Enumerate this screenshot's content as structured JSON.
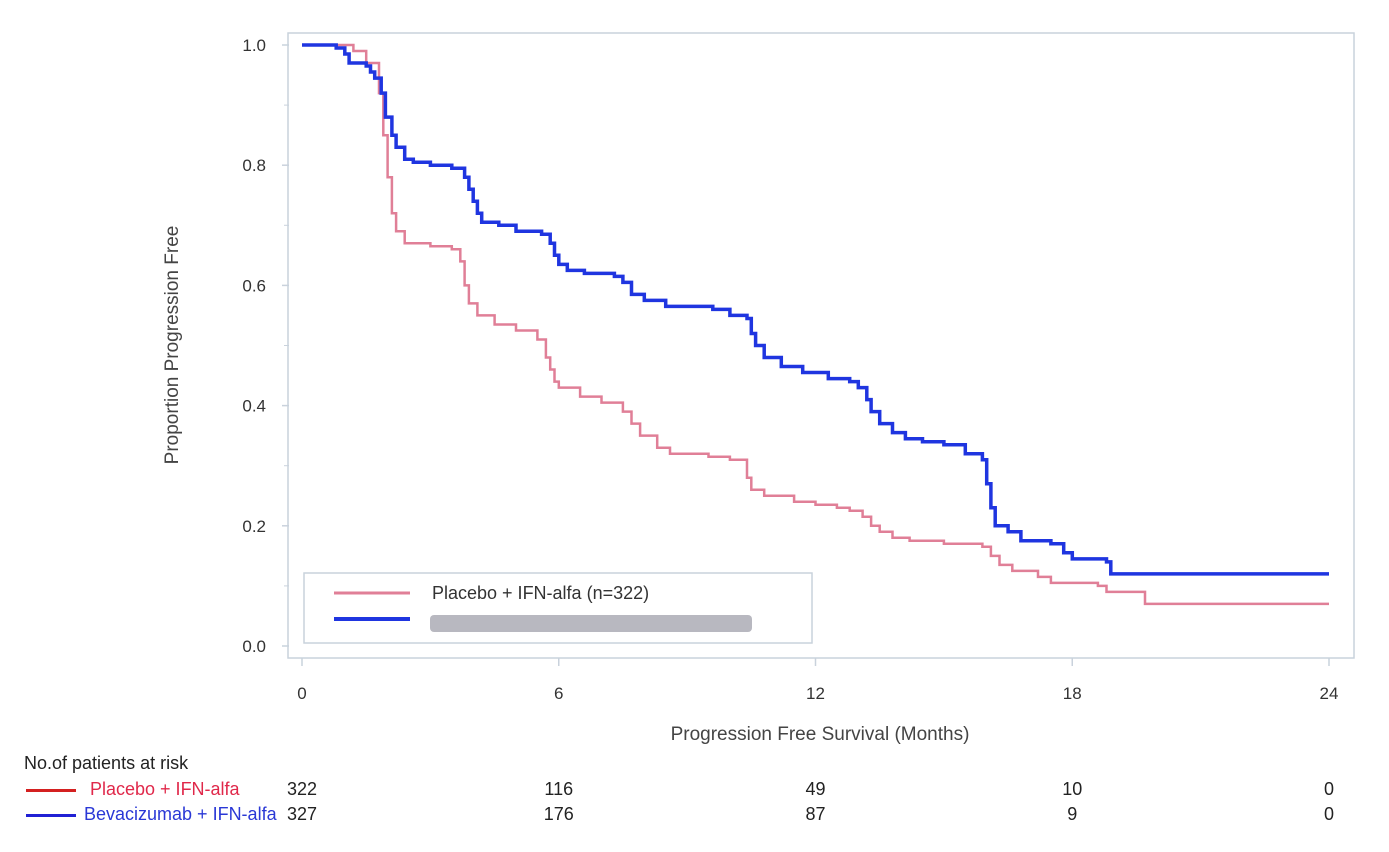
{
  "chart_data": {
    "type": "line",
    "xlabel": "Progression Free Survival (Months)",
    "ylabel": "Proportion Progression Free",
    "xlim": [
      0,
      24
    ],
    "ylim": [
      0,
      1
    ],
    "x_ticks": [
      "0",
      "6",
      "12",
      "18",
      "24"
    ],
    "y_ticks": [
      "0.0",
      "0.2",
      "0.4",
      "0.6",
      "0.8",
      "1.0"
    ],
    "legend_placement": "bottom-left",
    "series": [
      {
        "name": "Placebo + IFN-alfa (n=322)",
        "color": "#e07f97",
        "points": [
          [
            0,
            1.0
          ],
          [
            0.9,
            1.0
          ],
          [
            1.2,
            0.99
          ],
          [
            1.5,
            0.97
          ],
          [
            1.8,
            0.92
          ],
          [
            1.9,
            0.85
          ],
          [
            2.0,
            0.78
          ],
          [
            2.1,
            0.72
          ],
          [
            2.2,
            0.69
          ],
          [
            2.4,
            0.67
          ],
          [
            3.0,
            0.665
          ],
          [
            3.5,
            0.66
          ],
          [
            3.7,
            0.64
          ],
          [
            3.8,
            0.6
          ],
          [
            3.9,
            0.57
          ],
          [
            4.1,
            0.55
          ],
          [
            4.5,
            0.535
          ],
          [
            5.0,
            0.525
          ],
          [
            5.5,
            0.51
          ],
          [
            5.7,
            0.48
          ],
          [
            5.8,
            0.46
          ],
          [
            5.9,
            0.44
          ],
          [
            6.0,
            0.43
          ],
          [
            6.5,
            0.415
          ],
          [
            7.0,
            0.405
          ],
          [
            7.5,
            0.39
          ],
          [
            7.7,
            0.37
          ],
          [
            7.9,
            0.35
          ],
          [
            8.3,
            0.33
          ],
          [
            8.6,
            0.32
          ],
          [
            9.0,
            0.32
          ],
          [
            9.5,
            0.315
          ],
          [
            10.0,
            0.31
          ],
          [
            10.3,
            0.31
          ],
          [
            10.4,
            0.28
          ],
          [
            10.5,
            0.26
          ],
          [
            10.8,
            0.25
          ],
          [
            11.5,
            0.24
          ],
          [
            12.0,
            0.235
          ],
          [
            12.5,
            0.23
          ],
          [
            12.8,
            0.225
          ],
          [
            13.1,
            0.215
          ],
          [
            13.3,
            0.2
          ],
          [
            13.5,
            0.19
          ],
          [
            13.8,
            0.18
          ],
          [
            14.2,
            0.175
          ],
          [
            15.0,
            0.17
          ],
          [
            15.9,
            0.165
          ],
          [
            16.1,
            0.15
          ],
          [
            16.3,
            0.135
          ],
          [
            16.6,
            0.125
          ],
          [
            17.2,
            0.115
          ],
          [
            17.5,
            0.105
          ],
          [
            18.6,
            0.1
          ],
          [
            18.8,
            0.09
          ],
          [
            19.6,
            0.09
          ],
          [
            19.7,
            0.07
          ],
          [
            24.0,
            0.07
          ]
        ]
      },
      {
        "name": "",
        "color": "#1f35e0",
        "points": [
          [
            0,
            1.0
          ],
          [
            0.5,
            1.0
          ],
          [
            0.8,
            0.995
          ],
          [
            1.0,
            0.985
          ],
          [
            1.1,
            0.97
          ],
          [
            1.5,
            0.965
          ],
          [
            1.6,
            0.955
          ],
          [
            1.7,
            0.945
          ],
          [
            1.85,
            0.92
          ],
          [
            1.95,
            0.88
          ],
          [
            2.1,
            0.85
          ],
          [
            2.2,
            0.83
          ],
          [
            2.4,
            0.81
          ],
          [
            2.6,
            0.805
          ],
          [
            3.0,
            0.8
          ],
          [
            3.5,
            0.795
          ],
          [
            3.8,
            0.78
          ],
          [
            3.9,
            0.76
          ],
          [
            4.0,
            0.74
          ],
          [
            4.1,
            0.72
          ],
          [
            4.2,
            0.705
          ],
          [
            4.6,
            0.7
          ],
          [
            5.0,
            0.69
          ],
          [
            5.6,
            0.685
          ],
          [
            5.8,
            0.67
          ],
          [
            5.9,
            0.65
          ],
          [
            6.0,
            0.635
          ],
          [
            6.2,
            0.625
          ],
          [
            6.6,
            0.62
          ],
          [
            7.0,
            0.62
          ],
          [
            7.3,
            0.615
          ],
          [
            7.5,
            0.605
          ],
          [
            7.7,
            0.585
          ],
          [
            8.0,
            0.575
          ],
          [
            8.5,
            0.565
          ],
          [
            9.0,
            0.565
          ],
          [
            9.6,
            0.56
          ],
          [
            10.0,
            0.55
          ],
          [
            10.4,
            0.545
          ],
          [
            10.5,
            0.52
          ],
          [
            10.6,
            0.5
          ],
          [
            10.8,
            0.48
          ],
          [
            11.2,
            0.465
          ],
          [
            11.7,
            0.455
          ],
          [
            12.3,
            0.445
          ],
          [
            12.8,
            0.44
          ],
          [
            13.0,
            0.43
          ],
          [
            13.2,
            0.41
          ],
          [
            13.3,
            0.39
          ],
          [
            13.5,
            0.37
          ],
          [
            13.8,
            0.355
          ],
          [
            14.1,
            0.345
          ],
          [
            14.5,
            0.34
          ],
          [
            15.0,
            0.335
          ],
          [
            15.5,
            0.32
          ],
          [
            15.9,
            0.31
          ],
          [
            16.0,
            0.27
          ],
          [
            16.1,
            0.23
          ],
          [
            16.2,
            0.2
          ],
          [
            16.5,
            0.19
          ],
          [
            16.8,
            0.175
          ],
          [
            17.5,
            0.17
          ],
          [
            17.8,
            0.155
          ],
          [
            18.0,
            0.145
          ],
          [
            18.8,
            0.14
          ],
          [
            18.9,
            0.12
          ],
          [
            24.0,
            0.12
          ]
        ]
      }
    ],
    "risk_table": {
      "title": "No.of patients at risk",
      "times": [
        0,
        6,
        12,
        18,
        24
      ],
      "rows": [
        {
          "label": "Placebo + IFN-alfa",
          "color": "#e0284a",
          "swatch": "#d42020",
          "counts": [
            "322",
            "116",
            "49",
            "10",
            "0"
          ]
        },
        {
          "label": "Bevacizumab + IFN-alfa",
          "color": "#2a38d6",
          "swatch": "#2020d4",
          "counts": [
            "327",
            "176",
            "87",
            "9",
            "0"
          ]
        }
      ]
    }
  }
}
